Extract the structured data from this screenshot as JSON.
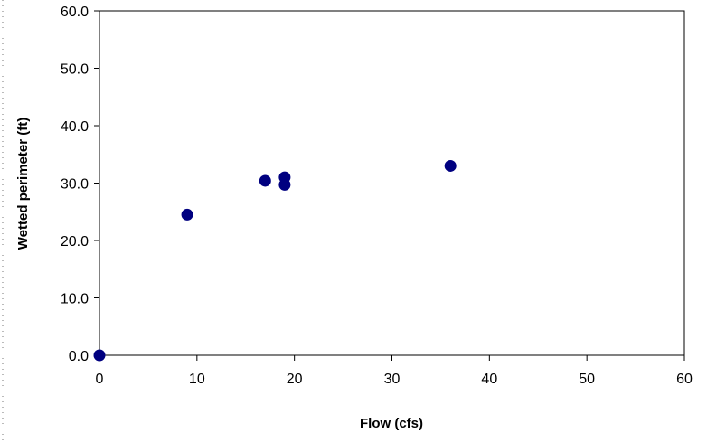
{
  "chart_data": {
    "type": "scatter",
    "title": "",
    "xlabel": "Flow (cfs)",
    "ylabel": "Wetted perimeter (ft)",
    "xlim": [
      0,
      60
    ],
    "ylim": [
      0,
      60
    ],
    "x_ticks": [
      "0",
      "10",
      "20",
      "30",
      "40",
      "50",
      "60"
    ],
    "y_ticks": [
      "0.0",
      "10.0",
      "20.0",
      "30.0",
      "40.0",
      "50.0",
      "60.0"
    ],
    "grid": false,
    "legend": "none",
    "marker_color": "#000080",
    "points": [
      {
        "x": 0,
        "y": 0.0
      },
      {
        "x": 9,
        "y": 24.5
      },
      {
        "x": 17,
        "y": 30.4
      },
      {
        "x": 19,
        "y": 31.0
      },
      {
        "x": 19,
        "y": 29.7
      },
      {
        "x": 36,
        "y": 33.0
      }
    ]
  }
}
